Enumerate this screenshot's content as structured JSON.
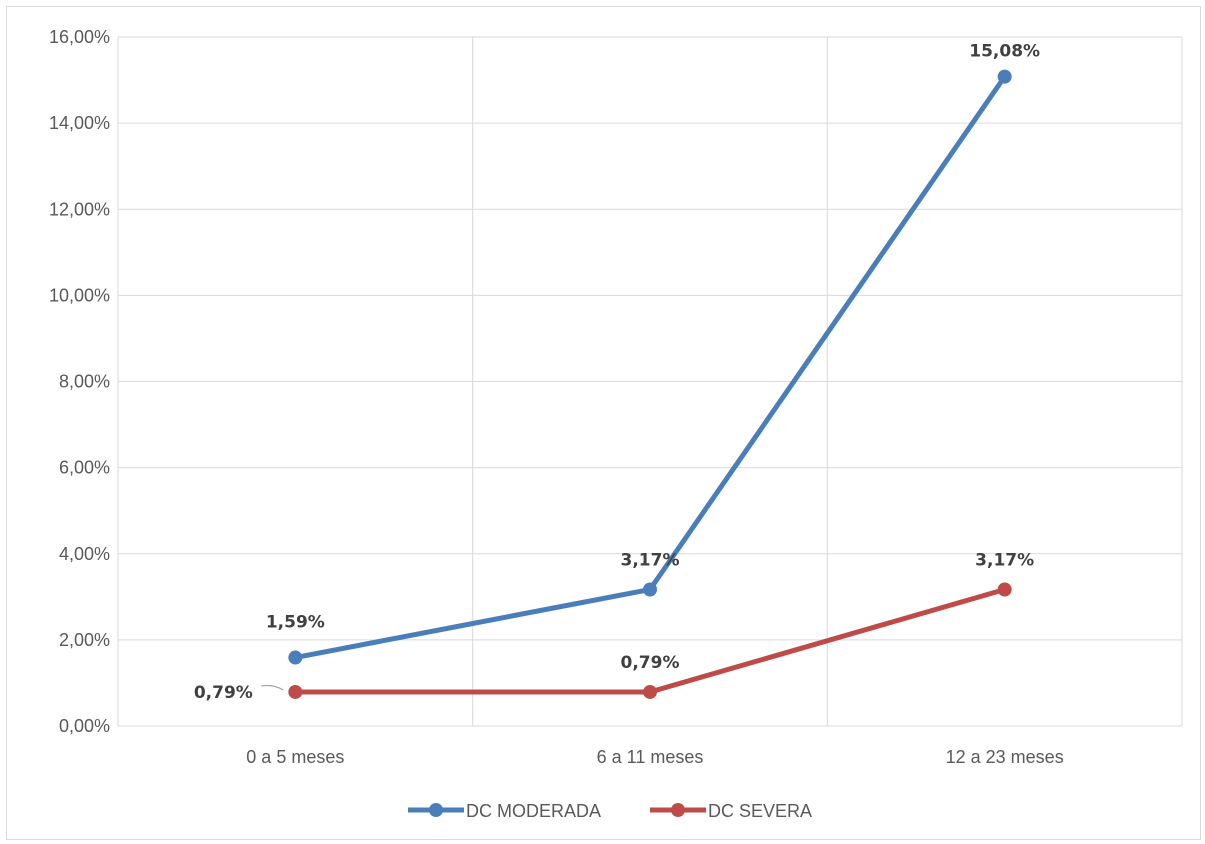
{
  "chart_data": {
    "type": "line",
    "title": "",
    "xlabel": "",
    "ylabel": "",
    "categories": [
      "0 a 5 meses",
      "6 a 11 meses",
      "12 a 23 meses"
    ],
    "series": [
      {
        "name": "DC MODERADA",
        "color": "#4a7ebb",
        "values": [
          1.59,
          3.17,
          15.08
        ],
        "labels": [
          "1,59%",
          "3,17%",
          "15,08%"
        ]
      },
      {
        "name": "DC SEVERA",
        "color": "#be4b48",
        "values": [
          0.79,
          0.79,
          3.17
        ],
        "labels": [
          "0,79%",
          "0,79%",
          "3,17%"
        ]
      }
    ],
    "ylim": [
      0,
      16
    ],
    "yticks": [
      0,
      2,
      4,
      6,
      8,
      10,
      12,
      14,
      16
    ],
    "ytick_labels": [
      "0,00%",
      "2,00%",
      "4,00%",
      "6,00%",
      "8,00%",
      "10,00%",
      "12,00%",
      "14,00%",
      "16,00%"
    ],
    "grid": true,
    "legend_position": "bottom",
    "gridline_color": "#d9d9d9"
  }
}
